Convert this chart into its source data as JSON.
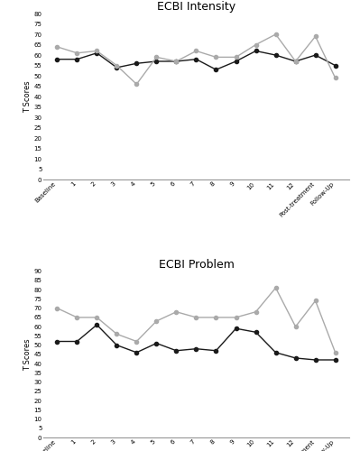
{
  "intensity": {
    "title": "ECBI Intensity",
    "ylabel": "T Scores",
    "ylim": [
      0,
      80
    ],
    "yticks": [
      0,
      5,
      10,
      15,
      20,
      25,
      30,
      35,
      40,
      45,
      50,
      55,
      60,
      65,
      70,
      75,
      80
    ],
    "xtick_labels": [
      "Baseline",
      "1",
      "2",
      "3",
      "4",
      "5",
      "6",
      "7",
      "8",
      "9",
      "10",
      "11",
      "12",
      "Post-treatment",
      "Follow-Up"
    ],
    "noah": [
      58,
      58,
      61,
      54,
      56,
      57,
      57,
      58,
      53,
      57,
      62,
      60,
      57,
      60,
      55
    ],
    "willow": [
      64,
      61,
      62,
      55,
      46,
      59,
      57,
      62,
      59,
      59,
      65,
      70,
      57,
      69,
      49
    ]
  },
  "problem": {
    "title": "ECBI Problem",
    "ylabel": "T Scores",
    "ylim": [
      0,
      90
    ],
    "yticks": [
      0,
      5,
      10,
      15,
      20,
      25,
      30,
      35,
      40,
      45,
      50,
      55,
      60,
      65,
      70,
      75,
      80,
      85,
      90
    ],
    "xtick_labels": [
      "Baseline",
      "1",
      "2",
      "3",
      "4",
      "5",
      "6",
      "7",
      "8",
      "9",
      "10",
      "11",
      "12",
      "Post-treatment",
      "Follow-Up"
    ],
    "noah": [
      52,
      52,
      61,
      50,
      46,
      51,
      47,
      48,
      47,
      59,
      57,
      46,
      43,
      42,
      42
    ],
    "willow": [
      70,
      65,
      65,
      56,
      52,
      63,
      68,
      65,
      65,
      65,
      68,
      81,
      60,
      74,
      46
    ]
  },
  "noah_color": "#1a1a1a",
  "willow_color": "#aaaaaa",
  "marker_size": 3,
  "line_width": 1.0,
  "bg_color": "#ffffff",
  "title_fontsize": 9,
  "ylabel_fontsize": 6,
  "ytick_fontsize": 5,
  "xtick_fontsize": 5,
  "legend_fontsize": 7
}
